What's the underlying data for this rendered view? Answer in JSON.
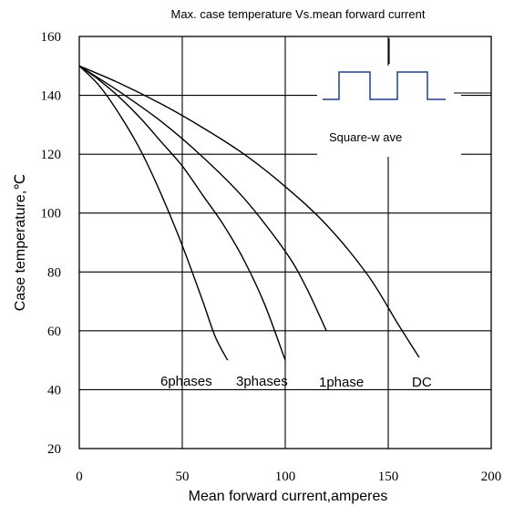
{
  "chart_data": {
    "type": "line",
    "title": "Max. case temperature Vs.mean forward current",
    "xlabel": "Mean forward current,amperes",
    "ylabel": "Case temperature,℃",
    "xlim": [
      0,
      200
    ],
    "ylim": [
      20,
      160
    ],
    "xticks": [
      0,
      50,
      100,
      150,
      200
    ],
    "yticks": [
      20,
      40,
      60,
      80,
      100,
      120,
      140,
      160
    ],
    "grid": true,
    "series": [
      {
        "name": "6phases",
        "x": [
          0,
          10,
          20,
          30,
          40,
          50,
          60,
          66,
          72
        ],
        "y": [
          150,
          143,
          133,
          121,
          106,
          89,
          70,
          58,
          50
        ]
      },
      {
        "name": "3phases",
        "x": [
          0,
          10,
          20,
          30,
          40,
          50,
          60,
          70,
          80,
          90,
          100
        ],
        "y": [
          150,
          145,
          139,
          132,
          124,
          116,
          106,
          96,
          84,
          69,
          50
        ]
      },
      {
        "name": "1phase",
        "x": [
          0,
          20,
          40,
          60,
          80,
          100,
          110,
          120
        ],
        "y": [
          150,
          141,
          131,
          119,
          105,
          87,
          75,
          60
        ]
      },
      {
        "name": "DC",
        "x": [
          0,
          20,
          40,
          60,
          80,
          100,
          120,
          140,
          155,
          165
        ],
        "y": [
          150,
          144,
          137,
          129,
          120,
          109,
          96,
          79,
          62,
          51
        ]
      }
    ],
    "label_texts": {
      "six": "6phases",
      "three": "3phases",
      "one": "1phase",
      "dc": "DC"
    },
    "inset": {
      "label": "Square-w ave"
    }
  }
}
